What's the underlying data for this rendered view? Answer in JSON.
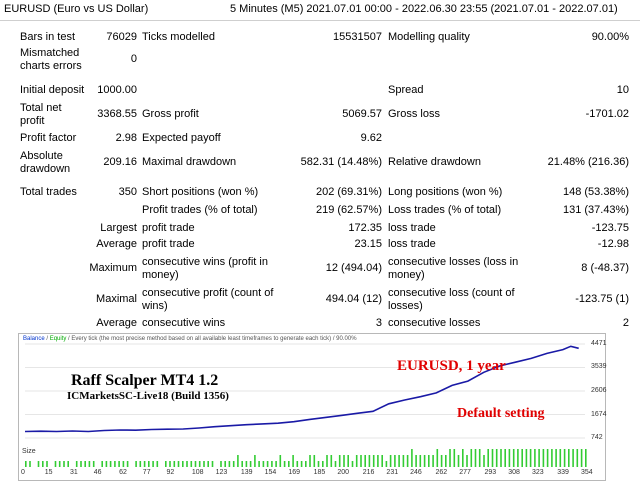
{
  "header": {
    "symbol": "EURUSD (Euro vs US Dollar)",
    "period": "5 Minutes (M5) 2021.07.01 00:00 - 2022.06.30 23:55 (2021.07.01 - 2022.07.01)"
  },
  "report": {
    "bars_label": "Bars in test",
    "bars_value": "76029",
    "ticks_label": "Ticks modelled",
    "ticks_value": "15531507",
    "quality_label": "Modelling quality",
    "quality_value": "90.00%",
    "mismatched_label_1": "Mismatched",
    "mismatched_label_2": "charts errors",
    "mismatched_value": "0",
    "deposit_label": "Initial deposit",
    "deposit_value": "1000.00",
    "spread_label": "Spread",
    "spread_value": "10",
    "net_label_1": "Total net",
    "net_label_2": "profit",
    "net_value": "3368.55",
    "gross_profit_label": "Gross profit",
    "gross_profit_value": "5069.57",
    "gross_loss_label": "Gross loss",
    "gross_loss_value": "-1701.02",
    "pf_label": "Profit factor",
    "pf_value": "2.98",
    "payoff_label": "Expected payoff",
    "payoff_value": "9.62",
    "abs_dd_label_1": "Absolute",
    "abs_dd_label_2": "drawdown",
    "abs_dd_value": "209.16",
    "max_dd_label": "Maximal drawdown",
    "max_dd_value": "582.31 (14.48%)",
    "rel_dd_label": "Relative drawdown",
    "rel_dd_value": "21.48% (216.36)",
    "trades_label": "Total trades",
    "trades_value": "350",
    "short_label": "Short positions (won %)",
    "short_value": "202 (69.31%)",
    "long_label": "Long positions (won %)",
    "long_value": "148 (53.38%)",
    "profit_trades_label": "Profit trades (% of total)",
    "profit_trades_value": "219 (62.57%)",
    "loss_trades_label": "Loss trades (% of total)",
    "loss_trades_value": "131 (37.43%)",
    "largest_label": "Largest",
    "largest_profit_label": "profit trade",
    "largest_profit_value": "172.35",
    "largest_loss_label": "loss trade",
    "largest_loss_value": "-123.75",
    "average_label": "Average",
    "average_profit_label": "profit trade",
    "average_profit_value": "23.15",
    "average_loss_label": "loss trade",
    "average_loss_value": "-12.98",
    "maximum_label": "Maximum",
    "max_cons_wins_label_1": "consecutive wins (profit in",
    "max_cons_wins_label_2": "money)",
    "max_cons_wins_value": "12 (494.04)",
    "max_cons_losses_label_1": "consecutive losses (loss in",
    "max_cons_losses_label_2": "money)",
    "max_cons_losses_value": "8 (-48.37)",
    "maximal_label": "Maximal",
    "maximal_profit_label_1": "consecutive profit (count of",
    "maximal_profit_label_2": "wins)",
    "maximal_profit_value": "494.04 (12)",
    "maximal_loss_label_1": "consecutive loss (count of",
    "maximal_loss_label_2": "losses)",
    "maximal_loss_value": "-123.75 (1)",
    "avg_cons_label": "Average",
    "avg_cons_wins_label": "consecutive wins",
    "avg_cons_wins_value": "3",
    "avg_cons_losses_label": "consecutive losses",
    "avg_cons_losses_value": "2"
  },
  "chart": {
    "legend_balance": "Balance",
    "legend_sep1": " / ",
    "legend_equity": "Equity",
    "legend_rest": " / Every tick (the most precise method based on all available least timeframes to generate each tick) / 90.00%",
    "overlay_title": "Raff Scalper MT4 1.2",
    "overlay_broker": "ICMarketsSC-Live18 (Build 1356)",
    "overlay_pair": "EURUSD,  1 year",
    "overlay_setting": "Default setting",
    "size_label": "Size",
    "line_color": "#1a1aa6",
    "size_bar_color": "#33cc33"
  },
  "chart_data": {
    "type": "line",
    "ylabel": "",
    "xlabel": "",
    "y_ticks": [
      "4471",
      "3539",
      "2606",
      "1674",
      "742"
    ],
    "x_ticks": [
      "0",
      "15",
      "31",
      "46",
      "62",
      "77",
      "92",
      "108",
      "123",
      "139",
      "154",
      "169",
      "185",
      "200",
      "216",
      "231",
      "246",
      "262",
      "277",
      "293",
      "308",
      "323",
      "339",
      "354"
    ],
    "xlim": [
      0,
      354
    ],
    "ylim": [
      742,
      4471
    ],
    "series": [
      {
        "x": [
          0,
          10,
          20,
          30,
          40,
          50,
          60,
          70,
          80,
          90,
          100,
          110,
          120,
          130,
          140,
          150,
          160,
          170,
          180,
          190,
          200,
          210,
          220,
          230,
          240,
          250,
          260,
          270,
          280,
          290,
          300,
          310,
          320,
          330,
          340,
          345,
          350
        ],
        "y": [
          1000,
          1010,
          1000,
          1020,
          1000,
          1040,
          1060,
          1050,
          1080,
          1090,
          1100,
          1140,
          1190,
          1230,
          1270,
          1300,
          1330,
          1390,
          1480,
          1560,
          1640,
          1720,
          1800,
          2100,
          2250,
          2380,
          2530,
          2830,
          3000,
          3350,
          3600,
          3750,
          3900,
          4100,
          4250,
          4380,
          4300
        ]
      }
    ],
    "size": [
      1,
      1,
      0,
      1,
      1,
      1,
      0,
      1,
      1,
      1,
      1,
      0,
      1,
      1,
      1,
      1,
      1,
      0,
      1,
      1,
      1,
      1,
      1,
      1,
      1,
      0,
      1,
      1,
      1,
      1,
      1,
      1,
      0,
      1,
      1,
      1,
      1,
      1,
      1,
      1,
      1,
      1,
      1,
      1,
      1,
      0,
      1,
      1,
      1,
      1,
      2,
      1,
      1,
      1,
      2,
      1,
      1,
      1,
      1,
      1,
      2,
      1,
      1,
      2,
      1,
      1,
      1,
      2,
      2,
      1,
      1,
      2,
      2,
      1,
      2,
      2,
      2,
      1,
      2,
      2,
      2,
      2,
      2,
      2,
      2,
      1,
      2,
      2,
      2,
      2,
      2,
      3,
      2,
      2,
      2,
      2,
      2,
      3,
      2,
      2,
      3,
      3,
      2,
      3,
      2,
      3,
      3,
      3,
      2,
      3,
      3,
      3,
      3,
      3,
      3,
      3,
      3,
      3,
      3,
      3,
      3,
      3,
      3,
      3,
      3,
      3,
      3,
      3,
      3,
      3,
      3,
      3,
      3
    ]
  }
}
